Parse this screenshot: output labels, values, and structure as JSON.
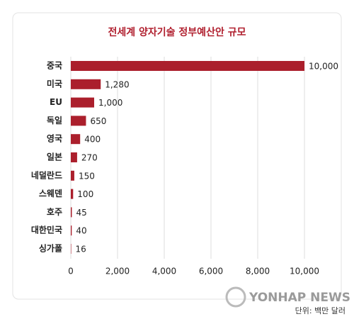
{
  "chart_data": {
    "type": "bar",
    "orientation": "horizontal",
    "title": "전세계 양자기술 정부예산안 규모",
    "categories": [
      "중국",
      "미국",
      "EU",
      "독일",
      "영국",
      "일본",
      "네덜란드",
      "스웨덴",
      "호주",
      "대한민국",
      "싱가폴"
    ],
    "values": [
      10000,
      1280,
      1000,
      650,
      400,
      270,
      150,
      100,
      45,
      40,
      16
    ],
    "value_labels": [
      "10,000",
      "1,280",
      "1,000",
      "650",
      "400",
      "270",
      "150",
      "100",
      "45",
      "40",
      "16"
    ],
    "color": "#ab1f2c",
    "xlim": [
      0,
      10000
    ],
    "xticks": [
      0,
      {
        "value": 2000,
        "label": "2,000"
      },
      {
        "value": 4000,
        "label": "4,000"
      },
      {
        "value": 6000,
        "label": "6,000"
      },
      {
        "value": 8000,
        "label": "8,000"
      },
      {
        "value": 10000,
        "label": "10,000"
      }
    ],
    "grid": true,
    "unit_note": "단위: 백만 달러",
    "watermark": "YONHAP NEWS"
  }
}
